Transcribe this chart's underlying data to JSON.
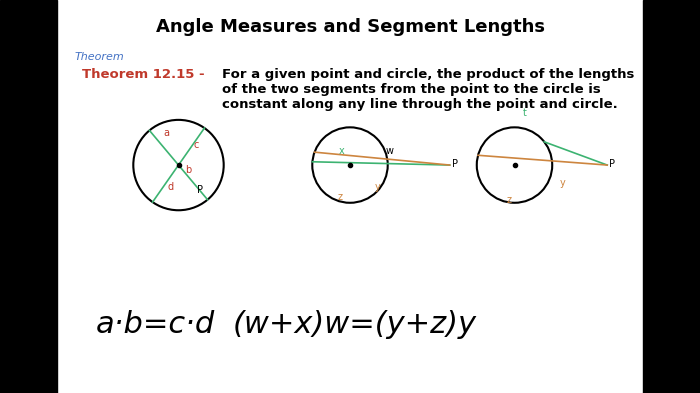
{
  "title": "Angle Measures and Segment Lengths",
  "title_fontsize": 13,
  "theorem_label": "Theorem",
  "theorem_label_color": "#4472C4",
  "theorem_number": "Theorem 12.15 - ",
  "theorem_number_color": "#C0392B",
  "theorem_text": "For a given point and circle, the product of the lengths\nof the two segments from the point to the circle is\nconstant along any line through the point and circle.",
  "theorem_fontsize": 9.5,
  "panel_background": "#ffffff",
  "bar_color": "#000000",
  "bar_width": 0.082,
  "formula1": "a·b=c·d",
  "formula2": "(w+x)w=(y+z)y",
  "c1x": 0.255,
  "c1y": 0.42,
  "c1r": 0.115,
  "c2x": 0.5,
  "c2y": 0.42,
  "c2r": 0.096,
  "c3x": 0.735,
  "c3y": 0.42,
  "c3r": 0.096
}
